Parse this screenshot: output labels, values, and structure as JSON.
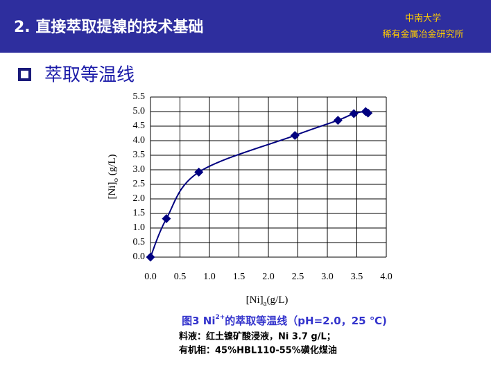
{
  "header": {
    "title": "2. 直接萃取提镍的技术基础",
    "org_line1": "中南大学",
    "org_line2": "稀有金属冶金研究所"
  },
  "section": "萃取等温线",
  "chart_data": {
    "type": "line",
    "xlabel": {
      "main": "[Ni]",
      "sub": "a",
      "unit": "(g/L)"
    },
    "ylabel": {
      "main": "[Ni]",
      "sub": "o",
      "unit": " (g/L)"
    },
    "x": [
      0,
      0.27,
      0.82,
      2.45,
      3.18,
      3.45,
      3.65,
      3.69
    ],
    "series": [
      {
        "color": "#000080",
        "values": [
          0,
          1.32,
          2.92,
          4.18,
          4.7,
          4.93,
          5.0,
          4.95
        ]
      }
    ],
    "xlim": [
      0,
      4
    ],
    "ylim": [
      0,
      5.5
    ],
    "xticks": [
      {
        "value": 0,
        "label": "0.0"
      },
      {
        "value": 0.5,
        "label": "0.5"
      },
      {
        "value": 1,
        "label": "1.0"
      },
      {
        "value": 1.5,
        "label": "1.5"
      },
      {
        "value": 2,
        "label": "2.0"
      },
      {
        "value": 2.5,
        "label": "2.5"
      },
      {
        "value": 3,
        "label": "3.0"
      },
      {
        "value": 3.5,
        "label": "3.5"
      },
      {
        "value": 4,
        "label": "4.0"
      }
    ],
    "yticks": [
      {
        "value": 0,
        "label": "0.0"
      },
      {
        "value": 0.5,
        "label": "0.5"
      },
      {
        "value": 1,
        "label": "1.0"
      },
      {
        "value": 1.5,
        "label": "1.5"
      },
      {
        "value": 2,
        "label": "2.0"
      },
      {
        "value": 2.5,
        "label": "2.5"
      },
      {
        "value": 3,
        "label": "3.0"
      },
      {
        "value": 3.5,
        "label": "3.5"
      },
      {
        "value": 4,
        "label": "4.0"
      },
      {
        "value": 4.5,
        "label": "4.5"
      },
      {
        "value": 5,
        "label": "5.0"
      },
      {
        "value": 5.5,
        "label": "5.5"
      }
    ],
    "grid": true,
    "caption": {
      "pre": "图3 Ni",
      "sup": "2+",
      "post": "的萃取等温线（pH=2.0，25 ℃)"
    },
    "notes": [
      "料液：红土镍矿酸浸液，Ni 3.7 g/L；",
      "有机相：45%HBL110-55%磺化煤油"
    ]
  }
}
